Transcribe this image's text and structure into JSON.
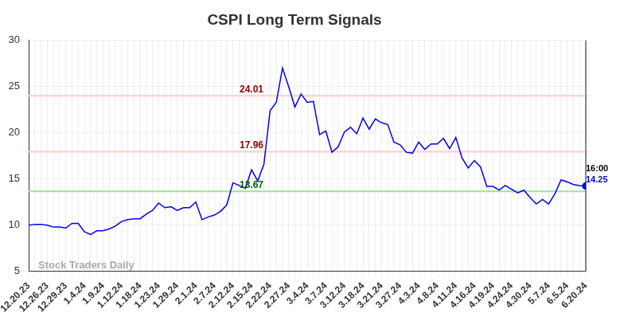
{
  "chart_data": {
    "type": "line",
    "title": "CSPI Long Term Signals",
    "categories": [
      "12.20.23",
      null,
      null,
      "12.26.23",
      null,
      null,
      "12.29.23",
      null,
      null,
      "1.4.24",
      null,
      null,
      "1.9.24",
      null,
      null,
      "1.12.24",
      null,
      null,
      "1.18.24",
      null,
      null,
      "1.23.24",
      null,
      null,
      "1.29.24",
      null,
      null,
      "2.1.24",
      null,
      null,
      "2.7.24",
      null,
      null,
      "2.12.24",
      null,
      null,
      "2.15.24",
      null,
      null,
      "2.22.24",
      null,
      null,
      "2.27.24",
      null,
      null,
      "3.4.24",
      null,
      null,
      "3.7.24",
      null,
      null,
      "3.12.24",
      null,
      null,
      "3.18.24",
      null,
      null,
      "3.21.24",
      null,
      null,
      "3.27.24",
      null,
      null,
      "4.3.24",
      null,
      null,
      "4.8.24",
      null,
      null,
      "4.11.24",
      null,
      null,
      "4.16.24",
      null,
      null,
      "4.19.24",
      null,
      null,
      "4.24.24",
      null,
      null,
      "4.30.24",
      null,
      null,
      "5.7.24",
      null,
      null,
      "6.5.24",
      null,
      null,
      "6.20.24"
    ],
    "values": [
      10.0,
      10.1,
      10.1,
      10.0,
      9.8,
      9.8,
      9.7,
      10.2,
      10.2,
      9.3,
      9.0,
      9.4,
      9.4,
      9.6,
      9.9,
      10.4,
      10.6,
      10.7,
      10.7,
      11.2,
      11.6,
      12.4,
      11.9,
      12.0,
      11.6,
      11.9,
      11.9,
      12.5,
      10.6,
      10.9,
      11.1,
      11.5,
      12.2,
      14.6,
      14.3,
      14.0,
      16.0,
      14.8,
      16.6,
      22.4,
      23.3,
      27.0,
      25.0,
      22.8,
      24.2,
      23.3,
      23.4,
      19.8,
      20.2,
      17.9,
      18.5,
      20.1,
      20.6,
      19.9,
      21.6,
      20.4,
      21.5,
      21.1,
      20.9,
      19.0,
      18.7,
      17.9,
      17.8,
      19.0,
      18.2,
      18.8,
      18.8,
      19.4,
      18.3,
      19.5,
      17.3,
      16.2,
      17.0,
      16.3,
      14.2,
      14.2,
      13.8,
      14.3,
      13.9,
      13.5,
      13.8,
      13.0,
      12.3,
      12.8,
      12.3,
      13.4,
      14.9,
      14.7,
      14.4,
      14.3,
      14.25
    ],
    "color": "#0000ee",
    "ylim": [
      5,
      30
    ],
    "yticks": [
      5,
      10,
      15,
      20,
      25,
      30
    ],
    "grid": true,
    "levels": [
      {
        "value": 24.01,
        "label": "24.01",
        "color": "#ffcccc",
        "label_color": "#8b0000"
      },
      {
        "value": 17.96,
        "label": "17.96",
        "color": "#ffcccc",
        "label_color": "#8b0000"
      },
      {
        "value": 13.67,
        "label": "13.67",
        "color": "#99e699",
        "label_color": "#006400"
      }
    ],
    "last_point_labels": {
      "time": "16:00",
      "value_label": "14.25"
    },
    "watermark": "Stock Traders Daily"
  }
}
